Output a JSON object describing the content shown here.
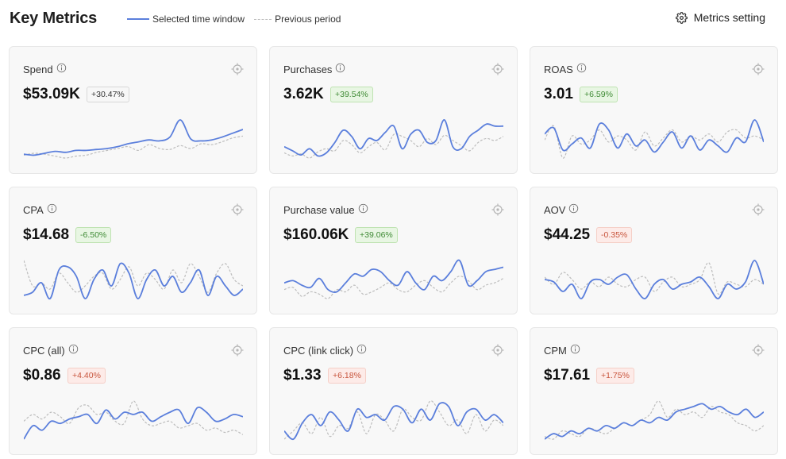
{
  "header": {
    "title": "Key Metrics",
    "legend": {
      "current": "Selected time window",
      "previous": "Previous period"
    },
    "settings_label": "Metrics setting"
  },
  "colors": {
    "current": "#5b7fdc",
    "previous": "#bdbdbd",
    "positive_text": "#3f8a35",
    "negative_text": "#c8553d"
  },
  "icons": {
    "info": "info-circle-icon",
    "target": "crosshair-icon",
    "settings": "gear-icon"
  },
  "cards": [
    {
      "label": "Spend",
      "value": "$53.09K",
      "change": "+30.47%",
      "tone": "neutral",
      "current": [
        4,
        3,
        5,
        7,
        6,
        8,
        8,
        9,
        10,
        12,
        15,
        17,
        19,
        18,
        22,
        40,
        20,
        18,
        19,
        22,
        26,
        30
      ],
      "previous": [
        3,
        5,
        4,
        2,
        0,
        2,
        3,
        6,
        8,
        10,
        12,
        8,
        14,
        10,
        9,
        13,
        10,
        15,
        14,
        17,
        21,
        23
      ]
    },
    {
      "label": "Purchases",
      "value": "3.62K",
      "change": "+39.54%",
      "tone": "pos",
      "current": [
        14,
        10,
        6,
        12,
        5,
        8,
        18,
        30,
        24,
        12,
        22,
        20,
        28,
        34,
        12,
        26,
        30,
        18,
        20,
        40,
        14,
        12,
        24,
        30,
        36,
        34,
        34
      ],
      "previous": [
        8,
        5,
        7,
        3,
        9,
        12,
        10,
        20,
        16,
        8,
        14,
        18,
        11,
        26,
        24,
        20,
        14,
        22,
        16,
        25,
        20,
        15,
        10,
        18,
        22,
        20,
        24
      ]
    },
    {
      "label": "ROAS",
      "value": "3.01",
      "change": "+6.59%",
      "tone": "pos",
      "current": [
        26,
        32,
        10,
        16,
        22,
        12,
        36,
        30,
        12,
        26,
        14,
        20,
        8,
        18,
        28,
        12,
        24,
        10,
        20,
        14,
        8,
        22,
        18,
        40,
        18
      ],
      "previous": [
        20,
        34,
        2,
        24,
        16,
        20,
        30,
        18,
        24,
        20,
        10,
        28,
        14,
        22,
        30,
        18,
        24,
        20,
        26,
        18,
        28,
        30,
        22,
        24,
        20
      ]
    },
    {
      "label": "CPA",
      "value": "$14.68",
      "change": "-6.50%",
      "tone": "pos",
      "current": [
        14,
        16,
        22,
        12,
        30,
        32,
        26,
        12,
        24,
        30,
        20,
        34,
        28,
        12,
        24,
        30,
        20,
        26,
        16,
        22,
        30,
        14,
        26,
        20,
        14,
        18
      ],
      "previous": [
        36,
        20,
        22,
        18,
        28,
        22,
        16,
        20,
        26,
        28,
        18,
        24,
        32,
        20,
        28,
        24,
        18,
        30,
        22,
        34,
        26,
        16,
        28,
        34,
        24,
        20
      ]
    },
    {
      "label": "Purchase value",
      "value": "$160.06K",
      "change": "+39.06%",
      "tone": "pos",
      "current": [
        20,
        22,
        18,
        16,
        24,
        14,
        12,
        20,
        28,
        26,
        32,
        30,
        22,
        18,
        30,
        20,
        14,
        26,
        22,
        30,
        40,
        18,
        22,
        30,
        32,
        34
      ],
      "previous": [
        14,
        16,
        8,
        12,
        10,
        6,
        14,
        12,
        18,
        10,
        12,
        16,
        20,
        14,
        12,
        18,
        22,
        16,
        12,
        20,
        26,
        22,
        14,
        18,
        20,
        24
      ]
    },
    {
      "label": "AOV",
      "value": "$44.25",
      "change": "-0.35%",
      "tone": "neg",
      "current": [
        24,
        22,
        14,
        20,
        8,
        22,
        24,
        20,
        26,
        28,
        16,
        8,
        20,
        24,
        16,
        20,
        22,
        26,
        18,
        8,
        20,
        16,
        22,
        40,
        20
      ],
      "previous": [
        26,
        20,
        30,
        24,
        16,
        22,
        18,
        26,
        20,
        18,
        24,
        26,
        14,
        22,
        26,
        18,
        20,
        24,
        38,
        12,
        22,
        20,
        18,
        24,
        20
      ]
    },
    {
      "label": "CPC (all)",
      "value": "$0.86",
      "change": "+4.40%",
      "tone": "neg",
      "current": [
        6,
        18,
        14,
        22,
        20,
        24,
        26,
        28,
        20,
        32,
        24,
        30,
        28,
        30,
        22,
        26,
        30,
        32,
        20,
        34,
        30,
        22,
        24,
        28,
        26
      ],
      "previous": [
        22,
        28,
        24,
        30,
        26,
        20,
        34,
        36,
        28,
        30,
        22,
        20,
        40,
        24,
        18,
        20,
        22,
        16,
        18,
        20,
        14,
        16,
        12,
        14,
        10
      ]
    },
    {
      "label": "CPC (link click)",
      "value": "$1.33",
      "change": "+6.18%",
      "tone": "neg",
      "current": [
        14,
        8,
        20,
        26,
        18,
        28,
        22,
        14,
        30,
        24,
        26,
        22,
        32,
        30,
        20,
        30,
        22,
        34,
        32,
        18,
        28,
        30,
        22,
        26,
        20
      ],
      "previous": [
        8,
        14,
        20,
        12,
        24,
        10,
        18,
        16,
        28,
        12,
        26,
        22,
        14,
        30,
        24,
        22,
        36,
        28,
        18,
        22,
        12,
        26,
        14,
        22,
        18
      ]
    },
    {
      "label": "CPM",
      "value": "$17.61",
      "change": "+1.75%",
      "tone": "neg",
      "current": [
        8,
        12,
        10,
        14,
        12,
        16,
        14,
        18,
        16,
        20,
        18,
        22,
        20,
        24,
        22,
        28,
        30,
        32,
        34,
        30,
        32,
        28,
        26,
        30,
        24,
        28
      ],
      "previous": [
        10,
        8,
        14,
        12,
        10,
        16,
        14,
        12,
        16,
        20,
        18,
        22,
        26,
        36,
        24,
        30,
        26,
        28,
        24,
        32,
        28,
        26,
        20,
        18,
        14,
        18
      ]
    }
  ]
}
